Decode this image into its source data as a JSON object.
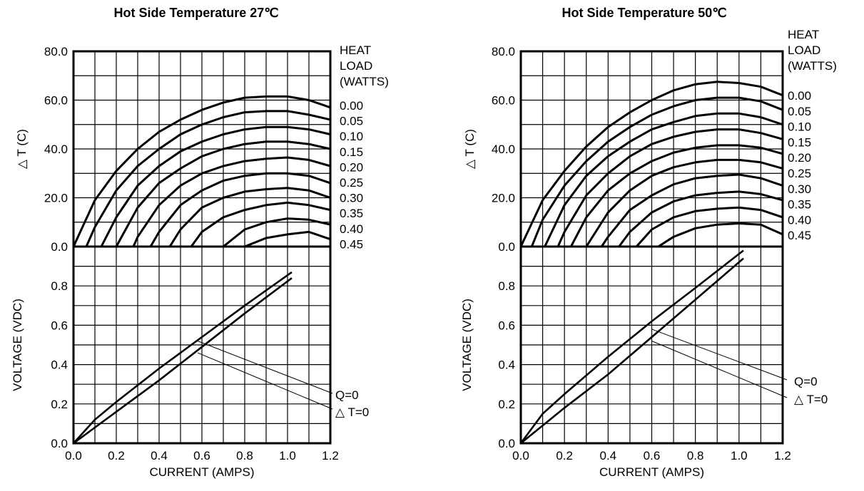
{
  "chart_data": [
    {
      "type": "line",
      "title": "Hot Side Temperature 27℃",
      "xlabel": "CURRENT (AMPS)",
      "xlim": [
        0,
        1.2
      ],
      "xticks": [
        "0.0",
        "0.2",
        "0.4",
        "0.6",
        "0.8",
        "1.0",
        "1.2"
      ],
      "grid": true,
      "delta_t_panel": {
        "ylabel": "△ T  (C)",
        "ylim": [
          0,
          80
        ],
        "yticks": [
          "0.0",
          "20.0",
          "40.0",
          "60.0",
          "80.0"
        ],
        "legend_title": [
          "HEAT",
          "LOAD",
          "(WATTS)"
        ],
        "legend_placement": "right",
        "series": [
          {
            "name": "0.00",
            "x": [
              0,
              0.1,
              0.2,
              0.3,
              0.4,
              0.5,
              0.6,
              0.7,
              0.8,
              0.9,
              1.0,
              1.1,
              1.2
            ],
            "y": [
              0,
              19,
              31,
              40,
              47,
              52,
              56,
              59,
              61,
              61.5,
              61.5,
              60,
              57
            ]
          },
          {
            "name": "0.05",
            "x": [
              0.06,
              0.1,
              0.2,
              0.3,
              0.4,
              0.5,
              0.6,
              0.7,
              0.8,
              0.9,
              1.0,
              1.1,
              1.2
            ],
            "y": [
              0,
              8,
              23,
              33,
              40,
              46,
              50,
              53,
              55,
              55.5,
              55.5,
              54,
              52
            ]
          },
          {
            "name": "0.10",
            "x": [
              0.13,
              0.2,
              0.3,
              0.4,
              0.5,
              0.6,
              0.7,
              0.8,
              0.9,
              1.0,
              1.1,
              1.2
            ],
            "y": [
              0,
              12,
              25,
              33,
              39,
              43,
              46,
              48,
              49,
              49,
              48,
              46
            ]
          },
          {
            "name": "0.15",
            "x": [
              0.2,
              0.3,
              0.4,
              0.5,
              0.6,
              0.7,
              0.8,
              0.9,
              1.0,
              1.1,
              1.2
            ],
            "y": [
              0,
              16,
              26,
              32,
              37,
              40,
              42,
              43,
              43,
              42,
              40
            ]
          },
          {
            "name": "0.20",
            "x": [
              0.28,
              0.3,
              0.4,
              0.5,
              0.6,
              0.7,
              0.8,
              0.9,
              1.0,
              1.1,
              1.2
            ],
            "y": [
              0,
              4,
              17,
              25,
              30,
              33,
              35,
              36,
              36.5,
              35.5,
              33
            ]
          },
          {
            "name": "0.25",
            "x": [
              0.36,
              0.4,
              0.5,
              0.6,
              0.7,
              0.8,
              0.9,
              1.0,
              1.1,
              1.2
            ],
            "y": [
              0,
              6,
              17,
              23,
              27,
              29,
              30,
              30,
              29,
              26
            ]
          },
          {
            "name": "0.30",
            "x": [
              0.45,
              0.5,
              0.6,
              0.7,
              0.8,
              0.9,
              1.0,
              1.1,
              1.2
            ],
            "y": [
              0,
              7,
              16,
              20,
              22.5,
              23.5,
              24,
              23,
              20
            ]
          },
          {
            "name": "0.35",
            "x": [
              0.55,
              0.6,
              0.7,
              0.8,
              0.9,
              1.0,
              1.1,
              1.2
            ],
            "y": [
              0,
              6,
              12,
              15,
              17,
              18,
              17,
              15
            ]
          },
          {
            "name": "0.40",
            "x": [
              0.7,
              0.8,
              0.9,
              1.0,
              1.1,
              1.2
            ],
            "y": [
              0,
              7,
              10,
              11.5,
              11,
              9
            ]
          },
          {
            "name": "0.45",
            "x": [
              0.8,
              0.9,
              1.0,
              1.1,
              1.2
            ],
            "y": [
              0,
              3.5,
              5,
              6,
              3
            ]
          }
        ]
      },
      "voltage_panel": {
        "ylabel": "VOLTAGE (VDC)",
        "ylim": [
          0,
          1.0
        ],
        "yticks": [
          "0.0",
          "0.2",
          "0.4",
          "0.6",
          "0.8"
        ],
        "series": [
          {
            "name": "Q=0",
            "x": [
              0,
              0.1,
              0.2,
              0.4,
              0.6,
              0.8,
              1.02
            ],
            "y": [
              0,
              0.12,
              0.21,
              0.38,
              0.54,
              0.7,
              0.87
            ]
          },
          {
            "name": "△ T=0",
            "x": [
              0,
              0.2,
              0.4,
              0.6,
              0.8,
              1.02
            ],
            "y": [
              0,
              0.16,
              0.32,
              0.49,
              0.66,
              0.84
            ]
          }
        ],
        "legend": [
          "Q=0",
          "△ T=0"
        ]
      }
    },
    {
      "type": "line",
      "title": "Hot Side Temperature 50℃",
      "xlabel": "CURRENT (AMPS)",
      "xlim": [
        0,
        1.2
      ],
      "xticks": [
        "0.0",
        "0.2",
        "0.4",
        "0.6",
        "0.8",
        "1.0",
        "1.2"
      ],
      "grid": true,
      "delta_t_panel": {
        "ylabel": "△ T  (C)",
        "ylim": [
          0,
          80
        ],
        "yticks": [
          "0.0",
          "20.0",
          "40.0",
          "60.0",
          "80.0"
        ],
        "legend_title": [
          "HEAT",
          "LOAD",
          "(WATTS)"
        ],
        "legend_placement": "right",
        "series": [
          {
            "name": "0.00",
            "x": [
              0,
              0.1,
              0.2,
              0.3,
              0.4,
              0.5,
              0.6,
              0.7,
              0.8,
              0.9,
              1.0,
              1.1,
              1.2
            ],
            "y": [
              0,
              19,
              31,
              41,
              49,
              55,
              60,
              64,
              66.5,
              67.5,
              67,
              65.5,
              62
            ]
          },
          {
            "name": "0.05",
            "x": [
              0.05,
              0.1,
              0.2,
              0.3,
              0.4,
              0.5,
              0.6,
              0.7,
              0.8,
              0.9,
              1.0,
              1.1,
              1.2
            ],
            "y": [
              0,
              11,
              25,
              35,
              43,
              49,
              54,
              57.5,
              60,
              61,
              61,
              59.5,
              56
            ]
          },
          {
            "name": "0.10",
            "x": [
              0.11,
              0.2,
              0.3,
              0.4,
              0.5,
              0.6,
              0.7,
              0.8,
              0.9,
              1.0,
              1.1,
              1.2
            ],
            "y": [
              0,
              17,
              29,
              37,
              43,
              48,
              51,
              53.5,
              54.5,
              54.5,
              53,
              50
            ]
          },
          {
            "name": "0.15",
            "x": [
              0.17,
              0.2,
              0.3,
              0.4,
              0.5,
              0.6,
              0.7,
              0.8,
              0.9,
              1.0,
              1.1,
              1.2
            ],
            "y": [
              0,
              6,
              21,
              30,
              37,
              42,
              45,
              47,
              48,
              48,
              46.5,
              44
            ]
          },
          {
            "name": "0.20",
            "x": [
              0.23,
              0.3,
              0.4,
              0.5,
              0.6,
              0.7,
              0.8,
              0.9,
              1.0,
              1.1,
              1.2
            ],
            "y": [
              0,
              12,
              23,
              30,
              35,
              38.5,
              40.5,
              41.5,
              41.5,
              40.5,
              38
            ]
          },
          {
            "name": "0.25",
            "x": [
              0.3,
              0.4,
              0.5,
              0.6,
              0.7,
              0.8,
              0.9,
              1.0,
              1.1,
              1.2
            ],
            "y": [
              0,
              14,
              23,
              29,
              32.5,
              34.5,
              35.5,
              35.5,
              34.5,
              32
            ]
          },
          {
            "name": "0.30",
            "x": [
              0.37,
              0.4,
              0.5,
              0.6,
              0.7,
              0.8,
              0.9,
              1.0,
              1.1,
              1.2
            ],
            "y": [
              0,
              4,
              15,
              21,
              25.5,
              28,
              29,
              29.5,
              28,
              25
            ]
          },
          {
            "name": "0.35",
            "x": [
              0.45,
              0.5,
              0.6,
              0.7,
              0.8,
              0.9,
              1.0,
              1.1,
              1.2
            ],
            "y": [
              0,
              6,
              14,
              18.5,
              21,
              22,
              22.5,
              21.5,
              19
            ]
          },
          {
            "name": "0.40",
            "x": [
              0.53,
              0.6,
              0.7,
              0.8,
              0.9,
              1.0,
              1.1,
              1.2
            ],
            "y": [
              0,
              7,
              12,
              14.5,
              15.5,
              16,
              15,
              12
            ]
          },
          {
            "name": "0.45",
            "x": [
              0.63,
              0.7,
              0.8,
              0.9,
              1.0,
              1.1,
              1.2
            ],
            "y": [
              0,
              4,
              7.5,
              9,
              9.5,
              9,
              5
            ]
          }
        ]
      },
      "voltage_panel": {
        "ylabel": "VOLTAGE (VDC)",
        "ylim": [
          0,
          1.0
        ],
        "yticks": [
          "0.0",
          "0.2",
          "0.4",
          "0.6",
          "0.8"
        ],
        "series": [
          {
            "name": "Q=0",
            "x": [
              0,
              0.1,
              0.2,
              0.4,
              0.6,
              0.8,
              1.02
            ],
            "y": [
              0,
              0.15,
              0.25,
              0.44,
              0.62,
              0.79,
              0.98
            ]
          },
          {
            "name": "△ T=0",
            "x": [
              0,
              0.2,
              0.4,
              0.6,
              0.8,
              1.02
            ],
            "y": [
              0,
              0.18,
              0.35,
              0.54,
              0.73,
              0.94
            ]
          }
        ],
        "legend": [
          "Q=0",
          "△ T=0"
        ]
      }
    }
  ]
}
